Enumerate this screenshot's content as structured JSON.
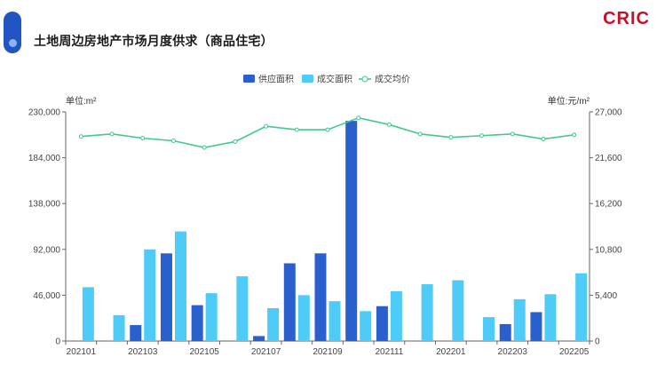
{
  "header": {
    "title": "土地周边房地产市场月度供求（商品住宅）",
    "logo": "CRIC"
  },
  "colors": {
    "supply": "#2c5fce",
    "deal": "#4ecbf6",
    "price": "#42c98d",
    "logo": "#c8102e"
  },
  "chart_data": {
    "type": "bar",
    "legend": [
      "供应面积",
      "成交面积",
      "成交均价"
    ],
    "y_left_unit": "单位:m²",
    "y_right_unit": "单位:元/m²",
    "ylim_left": [
      0,
      230000
    ],
    "ylim_right": [
      0,
      27000
    ],
    "yticks_left": [
      "0",
      "46,000",
      "92,000",
      "138,000",
      "184,000",
      "230,000"
    ],
    "yticks_right": [
      "0",
      "5,400",
      "10,800",
      "16,200",
      "21,600",
      "27,000"
    ],
    "categories": [
      "202101",
      "202102",
      "202103",
      "202104",
      "202105",
      "202106",
      "202107",
      "202108",
      "202109",
      "202110",
      "202111",
      "202112",
      "202201",
      "202202",
      "202203",
      "202204",
      "202205"
    ],
    "x_tick_labels": [
      "202101",
      "202103",
      "202105",
      "202107",
      "202109",
      "202111",
      "202201",
      "202203",
      "202205"
    ],
    "series": [
      {
        "name": "供应面积",
        "type": "bar",
        "axis": "left",
        "values": [
          0,
          0,
          16000,
          88000,
          36000,
          0,
          5000,
          78000,
          88000,
          221000,
          35000,
          0,
          0,
          0,
          17000,
          29000,
          0
        ]
      },
      {
        "name": "成交面积",
        "type": "bar",
        "axis": "left",
        "values": [
          54000,
          26000,
          92000,
          110000,
          48000,
          65000,
          33000,
          46000,
          40000,
          30000,
          50000,
          57000,
          61000,
          24000,
          42000,
          47000,
          68000
        ]
      },
      {
        "name": "成交均价",
        "type": "line",
        "axis": "right",
        "values": [
          24100,
          24400,
          23900,
          23600,
          22800,
          23500,
          25300,
          24900,
          24900,
          26300,
          25500,
          24400,
          24000,
          24200,
          24400,
          23800,
          24300
        ]
      }
    ]
  }
}
